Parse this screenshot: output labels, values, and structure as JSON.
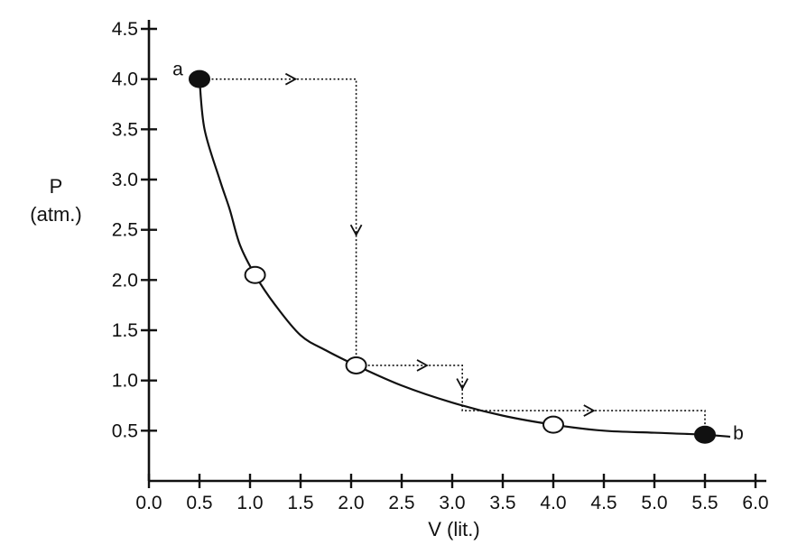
{
  "chart_data": {
    "type": "line",
    "title": "",
    "xlabel": "V (lit.)",
    "ylabel": [
      "P",
      "(atm.)"
    ],
    "xlim": [
      0.0,
      6.0
    ],
    "ylim": [
      0.0,
      4.5
    ],
    "x_ticks": [
      0.0,
      0.5,
      1.0,
      1.5,
      2.0,
      2.5,
      3.0,
      3.5,
      4.0,
      4.5,
      5.0,
      5.5,
      6.0
    ],
    "y_ticks": [
      0.5,
      1.0,
      1.5,
      2.0,
      2.5,
      3.0,
      3.5,
      4.0,
      4.5
    ],
    "x_tick_labels": [
      "0.0",
      "0.5",
      "1.0",
      "1.5",
      "2.0",
      "2.5",
      "3.0",
      "3.5",
      "4.0",
      "4.5",
      "5.0",
      "5.5",
      "6.0"
    ],
    "y_tick_labels": [
      "0.5",
      "1.0",
      "1.5",
      "2.0",
      "2.5",
      "3.0",
      "3.5",
      "4.0",
      "4.5"
    ],
    "grid": false,
    "series": [
      {
        "style": "solid-curve",
        "color": "#111111",
        "points": [
          [
            0.5,
            4.0
          ],
          [
            0.55,
            3.5
          ],
          [
            0.7,
            3.0
          ],
          [
            0.8,
            2.7
          ],
          [
            0.9,
            2.35
          ],
          [
            1.05,
            2.05
          ],
          [
            1.25,
            1.75
          ],
          [
            1.5,
            1.45
          ],
          [
            1.75,
            1.3
          ],
          [
            2.05,
            1.15
          ],
          [
            2.5,
            0.95
          ],
          [
            3.0,
            0.78
          ],
          [
            3.5,
            0.65
          ],
          [
            4.0,
            0.56
          ],
          [
            4.5,
            0.5
          ],
          [
            5.0,
            0.48
          ],
          [
            5.5,
            0.46
          ],
          [
            5.75,
            0.44
          ]
        ]
      },
      {
        "style": "dotted-path",
        "color": "#111111",
        "points": [
          [
            0.5,
            4.0
          ],
          [
            2.05,
            4.0
          ],
          [
            2.05,
            1.15
          ],
          [
            3.1,
            1.15
          ],
          [
            3.1,
            0.7
          ],
          [
            5.5,
            0.7
          ],
          [
            5.5,
            0.46
          ]
        ]
      }
    ],
    "markers": [
      {
        "x": 0.5,
        "y": 4.0,
        "fill": "filled"
      },
      {
        "x": 1.05,
        "y": 2.05,
        "fill": "open"
      },
      {
        "x": 2.05,
        "y": 1.15,
        "fill": "open"
      },
      {
        "x": 4.0,
        "y": 0.56,
        "fill": "open"
      },
      {
        "x": 5.5,
        "y": 0.46,
        "fill": "filled"
      }
    ],
    "point_labels": [
      {
        "text": "a",
        "x": 0.5,
        "y": 4.0,
        "side": "left"
      },
      {
        "text": "b",
        "x": 5.5,
        "y": 0.46,
        "side": "right"
      }
    ],
    "arrows": [
      {
        "x": 1.45,
        "y": 4.0,
        "direction": "right"
      },
      {
        "x": 2.05,
        "y": 2.45,
        "direction": "down"
      },
      {
        "x": 2.75,
        "y": 1.15,
        "direction": "right"
      },
      {
        "x": 3.1,
        "y": 0.92,
        "direction": "down"
      },
      {
        "x": 4.4,
        "y": 0.7,
        "direction": "right"
      }
    ]
  }
}
